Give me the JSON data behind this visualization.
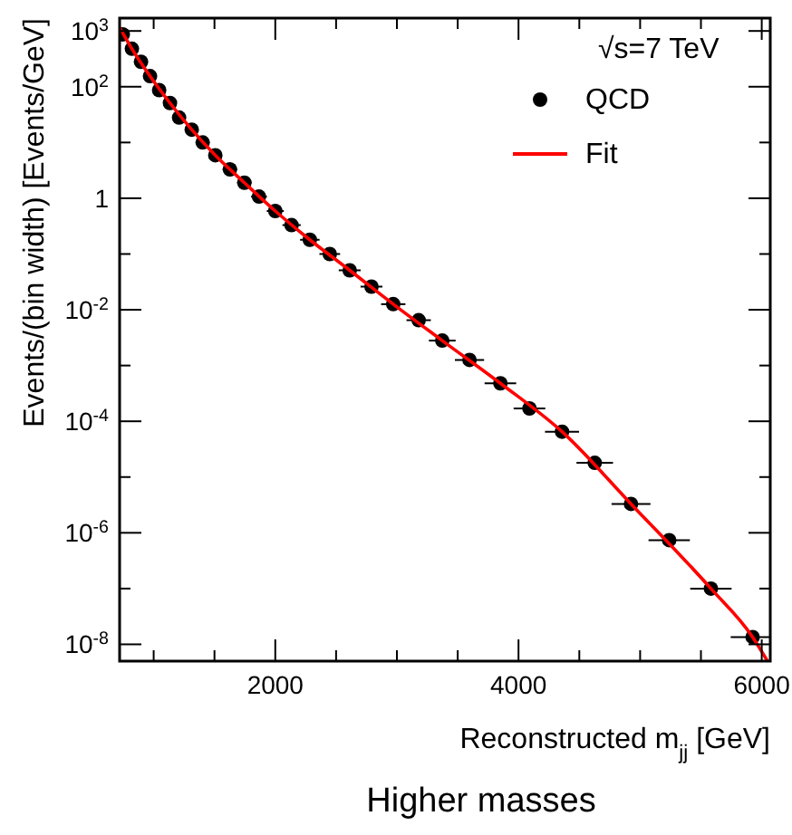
{
  "chart_data": {
    "type": "scatter",
    "title": "Higher masses",
    "xlabel": "Reconstructed m$_{jj}$ [GeV]",
    "ylabel": "Events/(bin width) [Events/GeV]",
    "legend_title": "√s=7 TeV",
    "legend": "top right",
    "log": "y",
    "grid": false,
    "marker": "circle",
    "xlim": [
      720,
      6070
    ],
    "ylim": [
      5e-09,
      1700
    ],
    "xticks": [
      {
        "value": 1000,
        "label": null
      },
      {
        "value": 1500,
        "label": null
      },
      2000,
      {
        "value": 2500,
        "label": null
      },
      {
        "value": 3000,
        "label": null
      },
      {
        "value": 3500,
        "label": null
      },
      4000,
      {
        "value": 4500,
        "label": null
      },
      {
        "value": 5000,
        "label": null
      },
      {
        "value": 5500,
        "label": null
      },
      6000
    ],
    "yticks": [
      {
        "value": 1000,
        "label": "10$^{3}$"
      },
      {
        "value": 100,
        "label": "10$^{2}$"
      },
      {
        "value": 10,
        "label": null
      },
      1,
      {
        "value": 0.1,
        "label": null
      },
      {
        "value": 0.01,
        "label": "10$^{-2}$"
      },
      {
        "value": 0.001,
        "label": null
      },
      {
        "value": 0.0001,
        "label": "10$^{-4}$"
      },
      {
        "value": 1e-05,
        "label": null
      },
      {
        "value": 1e-06,
        "label": "10$^{-6}$"
      },
      {
        "value": 1e-07,
        "label": null
      },
      {
        "value": 1e-08,
        "label": "10$^{-8}$"
      }
    ],
    "series": [
      {
        "name": "QCD",
        "color": "#000000",
        "x": [
          746,
          821,
          896,
          970,
          1045,
          1134,
          1209,
          1313,
          1403,
          1507,
          1627,
          1746,
          1866,
          2000,
          2134,
          2284,
          2448,
          2612,
          2791,
          2970,
          3179,
          3373,
          3597,
          3851,
          4090,
          4358,
          4627,
          4925,
          5239,
          5582,
          5925
        ],
        "values": [
          870,
          480,
          280,
          155,
          87,
          51,
          28,
          17,
          10,
          5.9,
          3.3,
          1.9,
          1.07,
          0.59,
          0.33,
          0.18,
          0.1,
          0.051,
          0.026,
          0.0126,
          0.0065,
          0.0028,
          0.00126,
          0.00048,
          0.00017,
          6.5e-05,
          1.8e-05,
          3.3e-06,
          7.4e-07,
          1e-07,
          1.35e-08
        ],
        "xerrors": [
          37,
          37,
          37,
          37,
          40,
          40,
          45,
          50,
          50,
          55,
          60,
          60,
          65,
          70,
          75,
          80,
          85,
          90,
          90,
          100,
          100,
          110,
          120,
          130,
          130,
          140,
          150,
          160,
          170,
          170,
          180
        ]
      },
      {
        "name": "Fit",
        "type": "line",
        "color": "#ff0000",
        "line_style": "solid",
        "marker": "none",
        "x": [
          720,
          821,
          970,
          1134,
          1313,
          1507,
          1746,
          2000,
          2284,
          2612,
          2970,
          3373,
          3851,
          4358,
          4925,
          5582,
          5925,
          6045
        ],
        "values": [
          1150,
          480,
          155,
          51,
          17,
          5.9,
          1.9,
          0.59,
          0.18,
          0.051,
          0.0126,
          0.0028,
          0.00048,
          6.5e-05,
          3.3e-06,
          1e-07,
          1.35e-08,
          5.1e-09
        ]
      }
    ]
  }
}
